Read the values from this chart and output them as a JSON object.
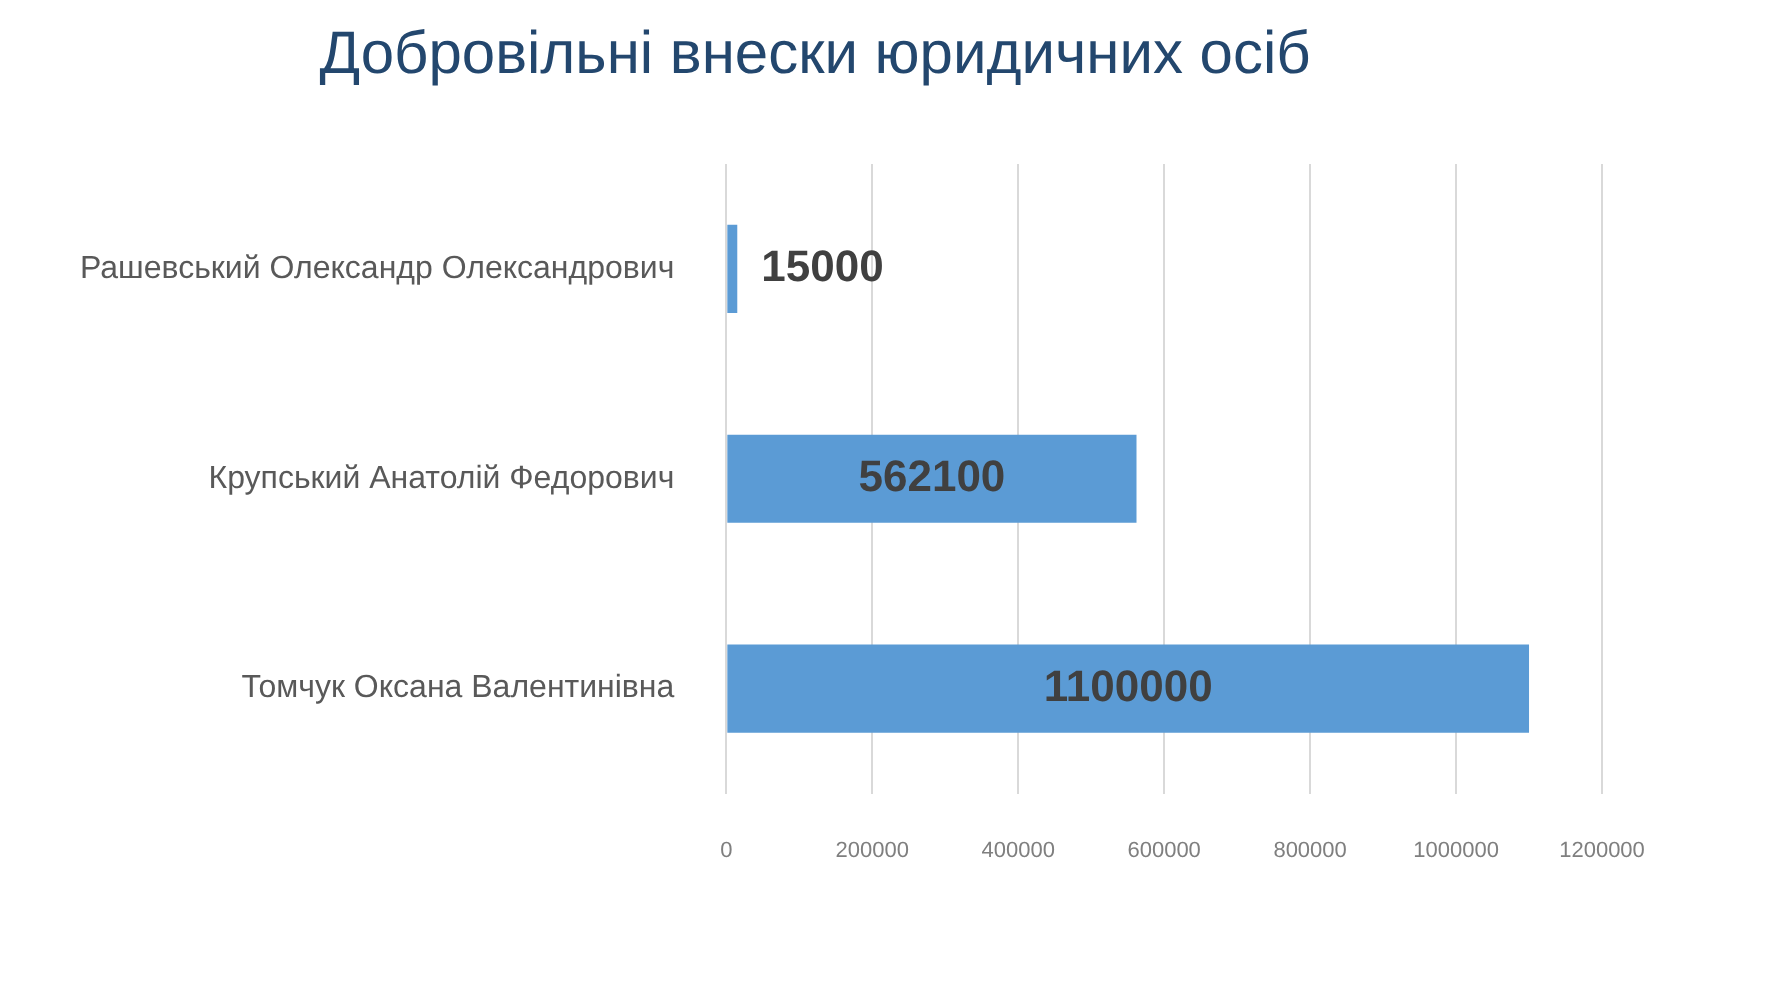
{
  "chart_data": {
    "type": "bar",
    "orientation": "horizontal",
    "title": "Добровільні внески юридичних осіб",
    "categories": [
      "Рашевський Олександр Олександрович",
      "Крупський Анатолій Федорович",
      "Томчук Оксана Валентинівна"
    ],
    "values": [
      15000,
      562100,
      1100000
    ],
    "color": "#5b9bd5",
    "xlim": [
      0,
      1200000
    ],
    "xticks": [
      0,
      200000,
      400000,
      600000,
      800000,
      1000000,
      1200000
    ],
    "grid": "x",
    "data_labels": true
  }
}
